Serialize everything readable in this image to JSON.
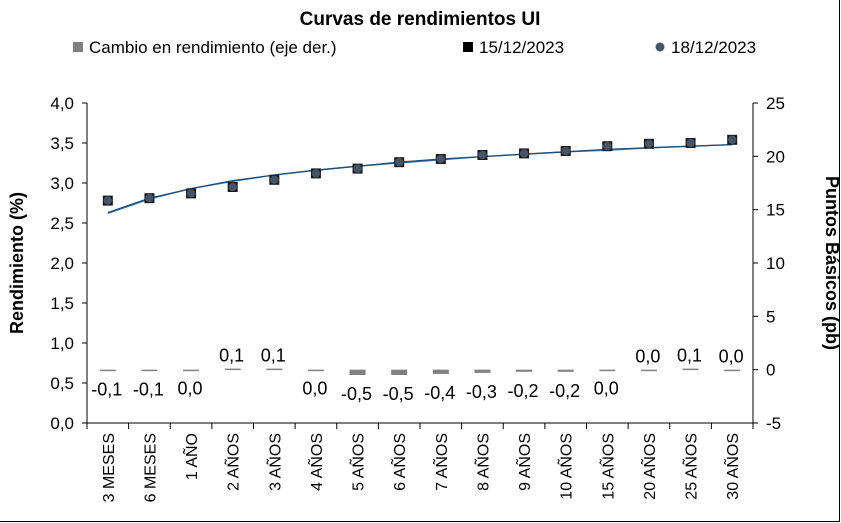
{
  "chart_data": {
    "type": "line",
    "title": "Curvas de rendimientos UI",
    "ylabel": "Rendimiento (%)",
    "y2label": "Puntos Básicos (pb)",
    "ylim": [
      0,
      4
    ],
    "y2lim": [
      -5,
      25
    ],
    "yticks": [
      "0,0",
      "0,5",
      "1,0",
      "1,5",
      "2,0",
      "2,5",
      "3,0",
      "3,5",
      "4,0"
    ],
    "y2ticks": [
      "-5",
      "0",
      "5",
      "10",
      "15",
      "20",
      "25"
    ],
    "categories": [
      "3 MESES",
      "6 MESES",
      "1 AÑO",
      "2 AÑOS",
      "3 AÑOS",
      "4 AÑOS",
      "5 AÑOS",
      "6 AÑOS",
      "7 AÑOS",
      "8 AÑOS",
      "9 AÑOS",
      "10 AÑOS",
      "15 AÑOS",
      "20 AÑOS",
      "25 AÑOS",
      "30 AÑOS"
    ],
    "legend_position": "top",
    "legend": [
      {
        "name": "Cambio en rendimiento (eje der.)",
        "marker": "bar",
        "color": "#808080"
      },
      {
        "name": "15/12/2023",
        "marker": "square",
        "color": "#000000"
      },
      {
        "name": "18/12/2023",
        "marker": "circle",
        "color": "#44546a"
      }
    ],
    "series": [
      {
        "name": "Cambio en rendimiento (eje der.)",
        "axis": "right",
        "type": "bar",
        "color": "#808080",
        "values": [
          -0.1,
          -0.1,
          0.0,
          0.1,
          0.1,
          0.0,
          -0.5,
          -0.5,
          -0.4,
          -0.3,
          -0.2,
          -0.2,
          0.0,
          0.0,
          0.1,
          0.0
        ],
        "data_labels": [
          "-0,1",
          "-0,1",
          "0,0",
          "0,1",
          "0,1",
          "0,0",
          "-0,5",
          "-0,5",
          "-0,4",
          "-0,3",
          "-0,2",
          "-0,2",
          "0,0",
          "0,0",
          "0,1",
          "0,0"
        ]
      },
      {
        "name": "15/12/2023",
        "axis": "left",
        "type": "scatter",
        "marker": "square",
        "color": "#1a1a1a",
        "values": [
          2.78,
          2.81,
          2.87,
          2.95,
          3.04,
          3.12,
          3.18,
          3.26,
          3.3,
          3.35,
          3.37,
          3.4,
          3.46,
          3.49,
          3.5,
          3.54
        ]
      },
      {
        "name": "18/12/2023",
        "axis": "left",
        "type": "scatter",
        "marker": "circle",
        "color": "#44546a",
        "values": [
          2.78,
          2.81,
          2.87,
          2.95,
          3.04,
          3.12,
          3.18,
          3.26,
          3.3,
          3.35,
          3.37,
          3.4,
          3.46,
          3.49,
          3.5,
          3.54
        ]
      }
    ],
    "fitted_curves": [
      {
        "color": "#2e75b6",
        "values": [
          2.62,
          2.8,
          2.93,
          3.02,
          3.1,
          3.16,
          3.21,
          3.25,
          3.29,
          3.33,
          3.36,
          3.39,
          3.41,
          3.44,
          3.46,
          3.48
        ]
      },
      {
        "color": "#1f4e79",
        "values": [
          2.63,
          2.81,
          2.93,
          3.03,
          3.1,
          3.16,
          3.21,
          3.26,
          3.3,
          3.33,
          3.36,
          3.39,
          3.42,
          3.44,
          3.46,
          3.48
        ]
      }
    ]
  }
}
